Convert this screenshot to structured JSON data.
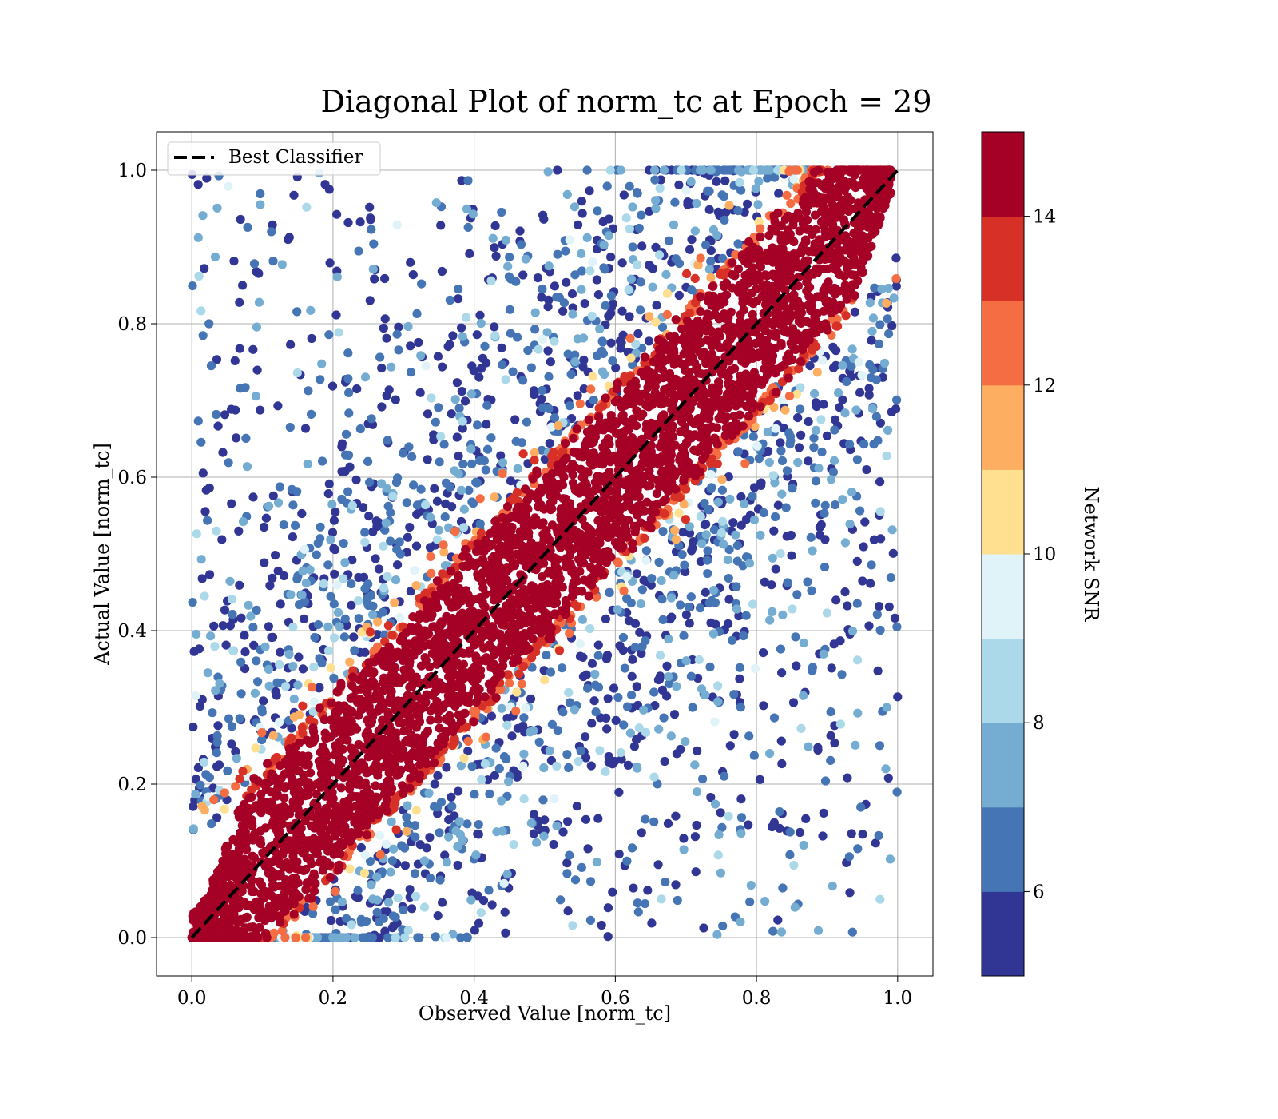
{
  "chart_data": {
    "type": "scatter",
    "title": "Diagonal Plot of norm_tc at Epoch = 29",
    "xlabel": "Observed Value [norm_tc]",
    "ylabel": "Actual Value [norm_tc]",
    "xlim": [
      -0.05,
      1.05
    ],
    "ylim": [
      -0.05,
      1.05
    ],
    "xticks": [
      "0.0",
      "0.2",
      "0.4",
      "0.6",
      "0.8",
      "1.0"
    ],
    "yticks": [
      "0.0",
      "0.2",
      "0.4",
      "0.6",
      "0.8",
      "1.0"
    ],
    "grid": true,
    "legend": {
      "placement": "upper-left",
      "entries": [
        "Best Classifier"
      ]
    },
    "reference_line": {
      "name": "Best Classifier",
      "x": [
        0,
        1
      ],
      "y": [
        0,
        1
      ],
      "style": "dashed",
      "color": "#000000"
    },
    "colorbar": {
      "label": "Network SNR",
      "range": [
        5,
        15
      ],
      "ticks": [
        "6",
        "8",
        "10",
        "12",
        "14"
      ],
      "bins": [
        5,
        6,
        7,
        8,
        9,
        10,
        11,
        12,
        13,
        14,
        15
      ],
      "colors": [
        "#313695",
        "#4575b4",
        "#74add1",
        "#abd9e9",
        "#e0f3f8",
        "#fee090",
        "#fdae61",
        "#f46d43",
        "#d73027",
        "#a50026"
      ]
    },
    "scatter_pattern": {
      "description_values": "high SNR (about 14-15) points concentrated along the diagonal within about 0.12; low SNR (about 5-9) points spread broadly off-diagonal",
      "diagonal_band_halfwidth": 0.12
    }
  }
}
